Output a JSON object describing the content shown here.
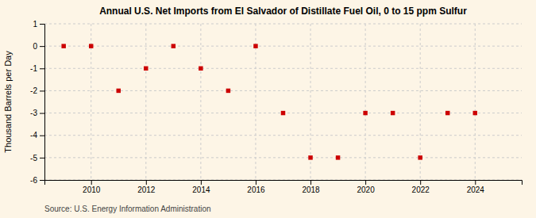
{
  "chart_data": {
    "type": "scatter",
    "title": "Annual U.S. Net Imports from El Salvador of Distillate Fuel Oil, 0 to 15 ppm Sulfur",
    "ylabel": "Thousand Barrels per Day",
    "annotations": [
      "Source: U.S. Energy Information Administration"
    ],
    "x": [
      2009,
      2010,
      2011,
      2012,
      2013,
      2014,
      2015,
      2016,
      2017,
      2018,
      2019,
      2020,
      2021,
      2022,
      2023,
      2024
    ],
    "values": [
      0,
      0,
      -2,
      -1,
      0,
      -1,
      -2,
      0,
      -3,
      -5,
      -5,
      -3,
      -3,
      -5,
      -3,
      -3
    ],
    "color": "#cc0000",
    "marker": "square",
    "xlim": [
      2008.3,
      2025.7
    ],
    "xticks": [
      2010,
      2012,
      2014,
      2016,
      2018,
      2020,
      2022,
      2024
    ],
    "ylim": [
      -6,
      1
    ],
    "yticks": [
      1,
      0,
      -1,
      -2,
      -3,
      -4,
      -5,
      -6
    ],
    "grid": true
  }
}
